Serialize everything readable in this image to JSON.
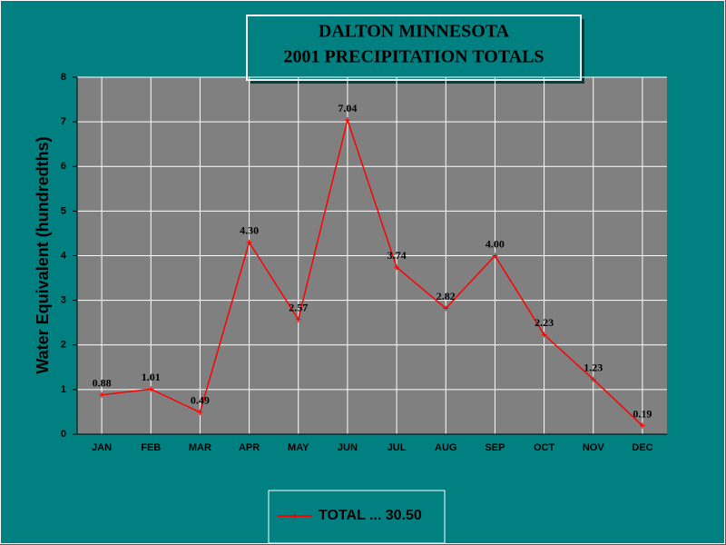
{
  "chart_data": {
    "type": "line",
    "title_lines": [
      "DALTON MINNESOTA",
      "2001 PRECIPITATION TOTALS"
    ],
    "y_label": "Water Equivalent (hundredths)",
    "categories": [
      "JAN",
      "FEB",
      "MAR",
      "APR",
      "MAY",
      "JUN",
      "JUL",
      "AUG",
      "SEP",
      "OCT",
      "NOV",
      "DEC"
    ],
    "series": [
      {
        "name": "TOTAL ... 30.50",
        "color": "#ff0000",
        "values": [
          0.88,
          1.01,
          0.49,
          4.3,
          2.57,
          7.04,
          3.74,
          2.82,
          4.0,
          2.23,
          1.23,
          0.19
        ],
        "value_labels": [
          "0.88",
          "1.01",
          "0.49",
          "4.30",
          "2.57",
          "7.04",
          "3.74",
          "2.82",
          "4.00",
          "2.23",
          "1.23",
          "0.19"
        ]
      }
    ],
    "ylim": [
      0,
      8
    ],
    "yticks": [
      0,
      1,
      2,
      3,
      4,
      5,
      6,
      7,
      8
    ],
    "grid": true
  }
}
